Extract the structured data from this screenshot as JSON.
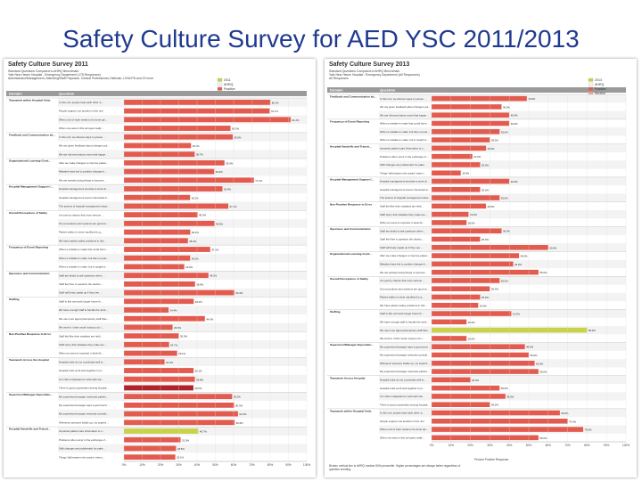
{
  "slide": {
    "title": "Safety Culture Survey for AED YSC 2011/2013"
  },
  "colors": {
    "bar": "#e35b4e",
    "highlight": "#c8d24a",
    "darkred": "#b3212a",
    "stripe": "#f3f3f3",
    "grid": "#dddddd"
  },
  "chart_data": [
    {
      "type": "bar",
      "orientation": "horizontal",
      "title": "Safety Culture Survey 2011",
      "subtitle": "Standard Questions Compared to AHRQ Benchmark",
      "subtitle2": "Yale New Haven Hospital - Emergency Department (175 Responses)",
      "subtitle3": "Administrator/Management, Attending/Staff Physician, Clinical Professional, Dietician, LVN/LPN and 19 more",
      "column_headers": {
        "domain": "Domain",
        "question": "Question"
      },
      "legend": [
        "2011",
        "AHRQ",
        "Positive"
      ],
      "x_ticks": [
        "0%",
        "10%",
        "20%",
        "30%",
        "40%",
        "50%",
        "60%",
        "70%",
        "80%",
        "90%",
        "100%"
      ],
      "xlim": [
        0,
        100
      ],
      "groups": [
        {
          "domain": "Teamwork within Hospital Units",
          "items": [
            {
              "q": "In this unit, people treat each other with respect",
              "v": 80.1
            },
            {
              "q": "People support one another in this unit",
              "v": 79.7
            },
            {
              "q": "When a lot of work needs to be done quickly, we work together as a team to get the work done",
              "v": 91.2
            },
            {
              "q": "When one area in this unit gets really busy, others help out",
              "v": 58.3
            }
          ]
        },
        {
          "domain": "Feedback and Communication about Error",
          "items": [
            {
              "q": "In this unit, we discuss ways to prevent errors from happening again",
              "v": 59.5
            },
            {
              "q": "We are given feedback about changes put into place based on event reports",
              "v": 36.7
            },
            {
              "q": "We are informed about errors that happen in this unit",
              "v": 38.7
            }
          ]
        },
        {
          "domain": "Organizational Learning-Continuous Improvement",
          "items": [
            {
              "q": "After we make changes to improve patient safety, we evaluate their effectiveness",
              "v": 55.0
            },
            {
              "q": "Mistakes have led to positive changes here",
              "v": 49.4
            },
            {
              "q": "We are actively doing things to improve patient safety",
              "v": 71.1
            }
          ]
        },
        {
          "domain": "Hospital Management Support for Patient Safety",
          "items": [
            {
              "q": "Hospital management provides a work climate that promotes patient safety",
              "v": 53.9
            },
            {
              "q": "Hospital management seems interested in patient safety only after an adverse event happens",
              "v": 36.2
            },
            {
              "q": "The actions of hospital management show that patient safety is a top priority",
              "v": 57.1
            }
          ]
        },
        {
          "domain": "Overall Perceptions of Safety",
          "items": [
            {
              "q": "It is just by chance that more serious mistakes don't happen around here",
              "v": 40.3
            },
            {
              "q": "Our procedures and systems are good at preventing errors from happening",
              "v": 49.5
            },
            {
              "q": "Patient safety is never sacrificed to get more work done",
              "v": 36.3
            },
            {
              "q": "We have patient safety problems in this unit",
              "v": 35.0
            }
          ]
        },
        {
          "domain": "Frequency of Event Reporting",
          "items": [
            {
              "q": "When a mistake is made that could harm the patient, but does not, how often is this reported",
              "v": 47.2
            },
            {
              "q": "When a mistake is made, but has no potential to harm the patient, how often is this reported",
              "v": 36.2
            },
            {
              "q": "When a mistake is made, but is caught and corrected before affecting the patient, how often is this reported",
              "v": 33.0
            }
          ]
        },
        {
          "domain": "Openness and Communication",
          "items": [
            {
              "q": "Staff are afraid to ask questions when something does not seem right",
              "v": 46.2
            },
            {
              "q": "Staff feel free to question the decisions or actions of those with more authority",
              "v": 38.9
            },
            {
              "q": "Staff will freely speak up if they see something that may negatively affect patient care",
              "v": 60.4
            }
          ]
        },
        {
          "domain": "Staffing",
          "items": [
            {
              "q": "Staff in this unit work longer hours than is best for patient care",
              "v": 38.2
            },
            {
              "q": "We have enough staff to handle the workload",
              "v": 24.4
            },
            {
              "q": "We use more agency/temporary staff than is best for patient care",
              "v": 44.3
            },
            {
              "q": "We work in 'crisis mode' trying to do too much, too quickly",
              "v": 26.6
            }
          ]
        },
        {
          "domain": "Non-Punitive Response to Error",
          "items": [
            {
              "q": "Staff feel like their mistakes are held against them",
              "v": 30.0
            },
            {
              "q": "Staff worry that mistakes they make are kept in their personnel file",
              "v": 24.7
            },
            {
              "q": "When an event is reported, it feels like the person is being written up, not the problem",
              "v": 29.1
            }
          ]
        },
        {
          "domain": "Teamwork Across the Hospital",
          "items": [
            {
              "q": "Hospital units do not coordinate well with each other",
              "v": 22.2
            },
            {
              "q": "Hospital units work well together to provide the best care for patients",
              "v": 38.1
            },
            {
              "q": "It is often unpleasant to work with staff from other hospital units",
              "v": 38.8
            },
            {
              "q": "There is good cooperation among hospital units that need to work together",
              "v": 38.0,
              "mark": "darkred"
            }
          ]
        },
        {
          "domain": "Supervisor/Manager Expectations & Actions promoting Safety",
          "items": [
            {
              "q": "My supervisor/manager overlooks patient safety problems that happen over and over",
              "v": 59.2
            },
            {
              "q": "My supervisor/manager says a good word when he/she sees a job done according to established patient safety procedures",
              "v": 60.3
            },
            {
              "q": "My supervisor/manager seriously considers staff suggestions for improving patient safety",
              "v": 62.4
            },
            {
              "q": "Whenever pressure builds up, my supervisor/manager wants us to work faster, even if it means taking shortcuts",
              "v": 60.6
            }
          ]
        },
        {
          "domain": "Hospital Handoffs and Transitions",
          "items": [
            {
              "q": "Important patient care information is often lost during shift changes",
              "v": 40.7,
              "mark": "highlight"
            },
            {
              "q": "Problems often occur in the exchange of information across hospital units",
              "v": 31.0
            },
            {
              "q": "Shift changes are problematic for patients in this hospital",
              "v": 28.5
            },
            {
              "q": "Things 'fall between the cracks' when transferring patients from one unit to another",
              "v": 28.1
            }
          ]
        }
      ]
    },
    {
      "type": "bar",
      "orientation": "horizontal",
      "title": "Safety Culture Survey 2013",
      "subtitle": "Standard Questions Compared to AHRQ Benchmark",
      "subtitle2": "Yale New Haven Hospital : Emergency Department (All Responses)",
      "subtitle3": "All Responses",
      "column_headers": {
        "domain": "Domain",
        "question": "Question"
      },
      "legend": [
        "2013",
        "AHRQ",
        "Positive",
        "Neutral"
      ],
      "x_ticks": [
        "0%",
        "10%",
        "20%",
        "30%",
        "40%",
        "50%",
        "60%",
        "70%",
        "80%",
        "90%",
        "100%"
      ],
      "xlim": [
        0,
        100
      ],
      "x_axis_label": "Percent Positive Response",
      "footnote": "Broken vertical line is AHRQ median 50th percentile. Higher percentages are always better regardless of question wording.",
      "groups": [
        {
          "domain": "Feedback and Communication about Error",
          "items": [
            {
              "q": "In this unit, we discuss ways to prevent errors from happening again",
              "v": 49.0
            },
            {
              "q": "We are given feedback about changes put into place based on event reports",
              "v": 36.0
            },
            {
              "q": "We are informed about errors that happen in this unit",
              "v": 40.0
            }
          ]
        },
        {
          "domain": "Frequency of Event Reporting",
          "items": [
            {
              "q": "When a mistake is made that could harm the patient, but does not, how often is this reported",
              "v": 40.0
            },
            {
              "q": "When a mistake is made, but has no potential to harm the patient, how often is this reported",
              "v": 35.0
            },
            {
              "q": "When a mistake is made, but is caught and corrected before affecting the patient, how often is this reported",
              "v": 30.0
            }
          ]
        },
        {
          "domain": "Hospital Handoffs and Transitions",
          "items": [
            {
              "q": "Important patient care information is often lost during shift changes",
              "v": 28.0
            },
            {
              "q": "Problems often occur in the exchange of information across hospital units",
              "v": 21.0
            },
            {
              "q": "Shift changes are problematic for patients in this hospital",
              "v": 25.0
            },
            {
              "q": "Things 'fall between the cracks' when transferring patients from one unit to another",
              "v": 15.0
            }
          ]
        },
        {
          "domain": "Hospital Management Support for Patient Safety",
          "items": [
            {
              "q": "Hospital management provides a work climate that promotes patient safety",
              "v": 40.0
            },
            {
              "q": "Hospital management seems interested in patient safety only after an adverse event happens",
              "v": 25.0
            },
            {
              "q": "The actions of hospital management show that patient safety is a top priority",
              "v": 35.0
            }
          ]
        },
        {
          "domain": "Non-Punitive Response to Error",
          "items": [
            {
              "q": "Staff feel like their mistakes are held against them",
              "v": 28.0
            },
            {
              "q": "Staff worry that mistakes they make are kept in their personnel file",
              "v": 19.0
            },
            {
              "q": "When an event is reported, it feels like the person is being written up, not the problem",
              "v": 18.0
            }
          ]
        },
        {
          "domain": "Openness and Communication",
          "items": [
            {
              "q": "Staff are afraid to ask questions when something does not seem right",
              "v": 36.0
            },
            {
              "q": "Staff feel free to question the decisions or actions of those with more authority",
              "v": 25.0
            },
            {
              "q": "Staff will freely speak up if they see something that may negatively affect patient care",
              "v": 60.0
            }
          ]
        },
        {
          "domain": "Organizational Learning-Continuous Improvement",
          "items": [
            {
              "q": "After we make changes to improve patient safety, we evaluate their effectiveness",
              "v": 45.0
            },
            {
              "q": "Mistakes have led to positive changes here",
              "v": 42.0
            },
            {
              "q": "We are actively doing things to improve patient safety",
              "v": 55.0
            }
          ]
        },
        {
          "domain": "Overall Perceptions of Safety",
          "items": [
            {
              "q": "It is just by chance that more serious mistakes don't happen around here",
              "v": 35.0
            },
            {
              "q": "Our procedures and systems are good at preventing errors from happening",
              "v": 30.0
            },
            {
              "q": "Patient safety is never sacrificed to get more work done",
              "v": 25.0
            },
            {
              "q": "We have patient safety problems in this unit",
              "v": 24.0
            }
          ]
        },
        {
          "domain": "Staffing",
          "items": [
            {
              "q": "Staff in this unit work longer hours than is best for patient care",
              "v": 41.0
            },
            {
              "q": "We have enough staff to handle the workload",
              "v": 18.0
            },
            {
              "q": "We use more agency/temporary staff than is best for patient care",
              "v": 80.0,
              "mark": "highlight"
            },
            {
              "q": "We work in 'crisis mode' trying to do too much, too quickly",
              "v": 18.0
            }
          ]
        },
        {
          "domain": "Supervisor/Manager Expectations & Actions promoting Patient Safety",
          "items": [
            {
              "q": "My supervisor/manager says a good word when he/she sees a job done according to established patient safety procedures",
              "v": 48.0
            },
            {
              "q": "My supervisor/manager seriously considers staff suggestions for improving patient safety",
              "v": 50.0
            },
            {
              "q": "Whenever pressure builds up, my supervisor/manager wants us to work faster, even if it means taking shortcuts",
              "v": 53.0
            },
            {
              "q": "My supervisor/manager overlooks patient safety problems that happen over and over",
              "v": 55.0
            }
          ]
        },
        {
          "domain": "Teamwork Across Hospital",
          "items": [
            {
              "q": "Hospital units do not coordinate well with each other",
              "v": 20.0
            },
            {
              "q": "Hospital units work well together to provide the best care for patients",
              "v": 35.0
            },
            {
              "q": "It is often unpleasant to work with staff from other hospital units",
              "v": 38.0
            },
            {
              "q": "There is good cooperation among hospital units that need to work together",
              "v": 30.0
            }
          ]
        },
        {
          "domain": "Teamwork within Hospital Units",
          "items": [
            {
              "q": "In this unit, people treat each other with respect",
              "v": 66.0
            },
            {
              "q": "People support one another in this unit",
              "v": 70.0
            },
            {
              "q": "When a lot of work needs to be done quickly, we work together as a team to get the work done",
              "v": 78.0
            },
            {
              "q": "When one area in this unit gets really busy, others help out",
              "v": 55.0
            }
          ]
        }
      ]
    }
  ]
}
